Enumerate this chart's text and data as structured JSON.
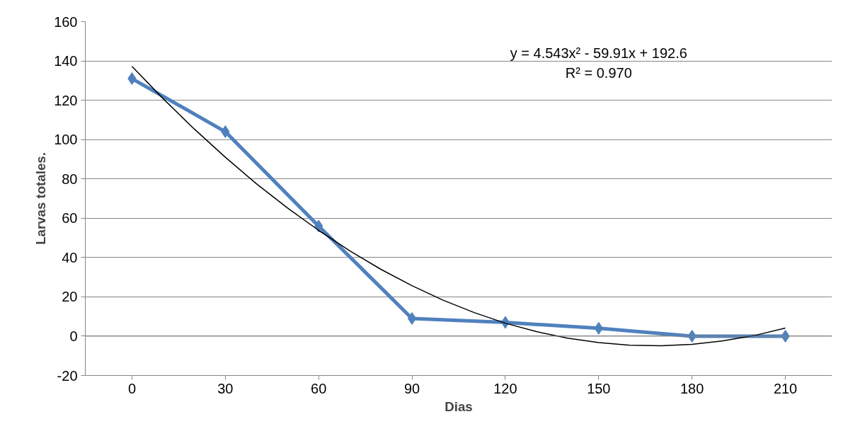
{
  "chart_data": {
    "type": "line",
    "xlabel": "Dias",
    "ylabel": "Larvas totales.",
    "x": [
      0,
      30,
      60,
      90,
      120,
      150,
      180,
      210
    ],
    "series": [
      {
        "color": "#4f81bd",
        "marker": "diamond",
        "values": [
          131,
          104,
          56,
          9,
          7,
          4,
          0,
          0
        ]
      },
      {
        "type": "line",
        "color": "#000000",
        "marker": "none",
        "x": [
          0,
          10,
          20,
          30,
          40,
          50,
          60,
          70,
          80,
          90,
          100,
          110,
          120,
          130,
          140,
          150,
          160,
          170,
          180,
          190,
          200,
          210
        ],
        "values": [
          137.2,
          120.8,
          105.4,
          91.0,
          77.5,
          65.2,
          53.8,
          43.4,
          34.0,
          25.7,
          18.3,
          12.0,
          6.6,
          2.3,
          -1.0,
          -3.3,
          -4.6,
          -4.9,
          -4.2,
          -2.4,
          0.3,
          4.1
        ]
      }
    ],
    "xlim": [
      -15,
      225
    ],
    "xticks": [
      0,
      30,
      60,
      90,
      120,
      150,
      180,
      210
    ],
    "ylim": [
      -20,
      160
    ],
    "yticks": [
      -20,
      0,
      20,
      40,
      60,
      80,
      100,
      120,
      140,
      160
    ],
    "grid": "y",
    "annotations": [
      "y = 4.543x² - 59.91x + 192.6",
      "R² = 0.970"
    ]
  }
}
